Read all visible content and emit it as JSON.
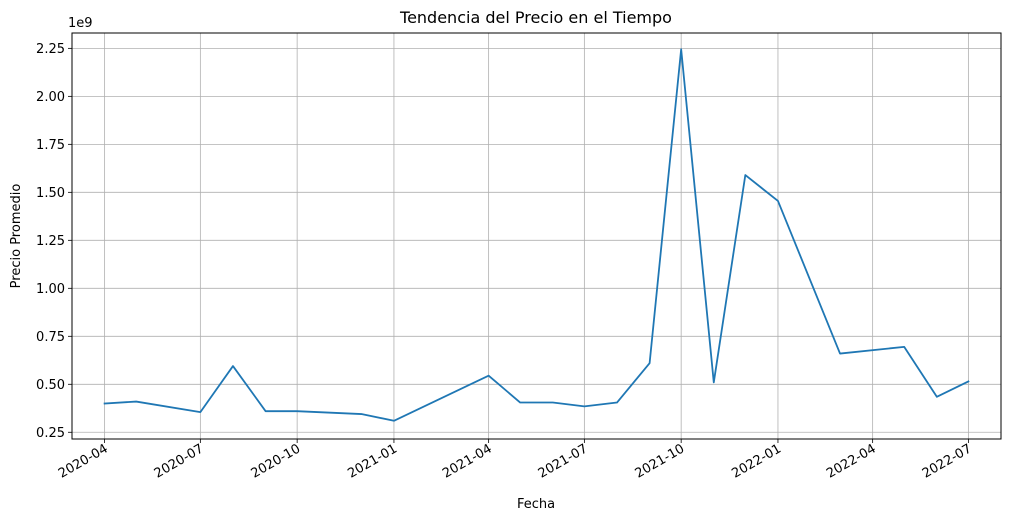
{
  "chart_data": {
    "type": "line",
    "title": "Tendencia del Precio en el Tiempo",
    "xlabel": "Fecha",
    "ylabel": "Precio Promedio",
    "y_offset_label": "1e9",
    "y_multiplier": 1000000000,
    "grid": true,
    "line_color": "#1f77b4",
    "xlim": [
      "2020-03-01",
      "2022-08-01"
    ],
    "ylim": [
      0.215,
      2.33
    ],
    "x_ticks": [
      "2020-04",
      "2020-07",
      "2020-10",
      "2021-01",
      "2021-04",
      "2021-07",
      "2021-10",
      "2022-01",
      "2022-04",
      "2022-07"
    ],
    "y_ticks": [
      "0.25",
      "0.50",
      "0.75",
      "1.00",
      "1.25",
      "1.50",
      "1.75",
      "2.00",
      "2.25"
    ],
    "series": [
      {
        "x": [
          "2020-04-01",
          "2020-05-01",
          "2020-07-01",
          "2020-08-01",
          "2020-09-01",
          "2020-10-01",
          "2020-12-01",
          "2021-01-01",
          "2021-04-01",
          "2021-05-01",
          "2021-06-01",
          "2021-07-01",
          "2021-08-01",
          "2021-09-01",
          "2021-10-01",
          "2021-11-01",
          "2021-12-01",
          "2022-01-01",
          "2022-03-01",
          "2022-05-01",
          "2022-06-01",
          "2022-07-01"
        ],
        "y": [
          0.4,
          0.41,
          0.355,
          0.595,
          0.36,
          0.36,
          0.345,
          0.31,
          0.545,
          0.405,
          0.405,
          0.385,
          0.405,
          0.61,
          2.245,
          0.51,
          1.59,
          1.455,
          0.66,
          0.695,
          0.435,
          0.515
        ]
      }
    ]
  }
}
